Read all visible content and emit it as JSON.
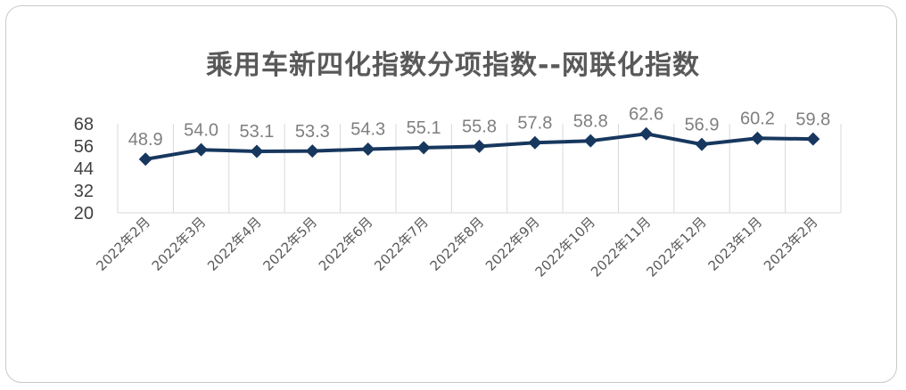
{
  "chart_data": {
    "type": "line",
    "title": "乘用车新四化指数分项指数--网联化指数",
    "xlabel": "",
    "ylabel": "",
    "categories": [
      "2022年2月",
      "2022年3月",
      "2022年4月",
      "2022年5月",
      "2022年6月",
      "2022年7月",
      "2022年8月",
      "2022年9月",
      "2022年10月",
      "2022年11月",
      "2022年12月",
      "2023年1月",
      "2023年2月"
    ],
    "series": [
      {
        "values": [
          48.9,
          54.0,
          53.1,
          53.3,
          54.3,
          55.1,
          55.8,
          57.8,
          58.8,
          62.6,
          56.9,
          60.2,
          59.8
        ]
      }
    ],
    "data_labels": [
      "48.9",
      "54.0",
      "53.1",
      "53.3",
      "54.3",
      "55.1",
      "55.8",
      "57.8",
      "58.8",
      "62.6",
      "56.9",
      "60.2",
      "59.8"
    ],
    "ylim": [
      20,
      68
    ],
    "yticks": [
      "20",
      "32",
      "44",
      "56",
      "68"
    ],
    "grid": "vertical",
    "legend": "none",
    "line_color": "#17375e",
    "gridline_color": "#d9d9d9"
  }
}
